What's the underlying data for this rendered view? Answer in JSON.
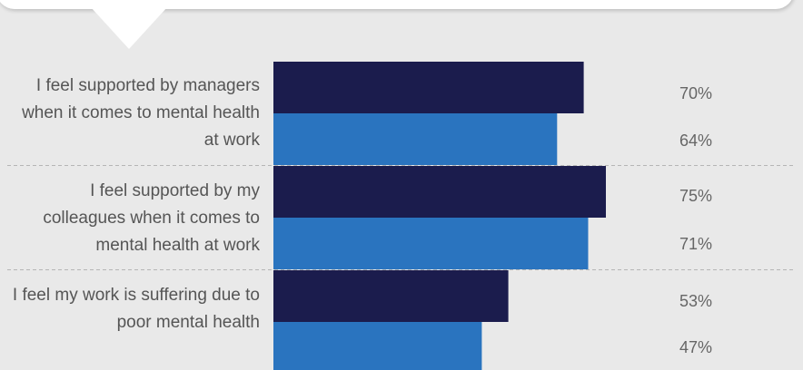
{
  "chart_data": {
    "type": "bar",
    "orientation": "horizontal",
    "categories": [
      "I feel supported by managers when it comes to mental health at work",
      "I feel supported by my colleagues when it comes to mental health at work",
      "I feel my work is suffering due to poor mental health"
    ],
    "series": [
      {
        "values": [
          70,
          75,
          53
        ],
        "color": "#1b1c4d"
      },
      {
        "values": [
          64,
          71,
          47
        ],
        "color": "#2a74bf"
      }
    ],
    "value_labels": [
      [
        "70%",
        "75%",
        "53%"
      ],
      [
        "64%",
        "71%",
        "47%"
      ]
    ],
    "xlim": [
      0,
      100
    ],
    "grid": false,
    "separators": "dashed"
  }
}
